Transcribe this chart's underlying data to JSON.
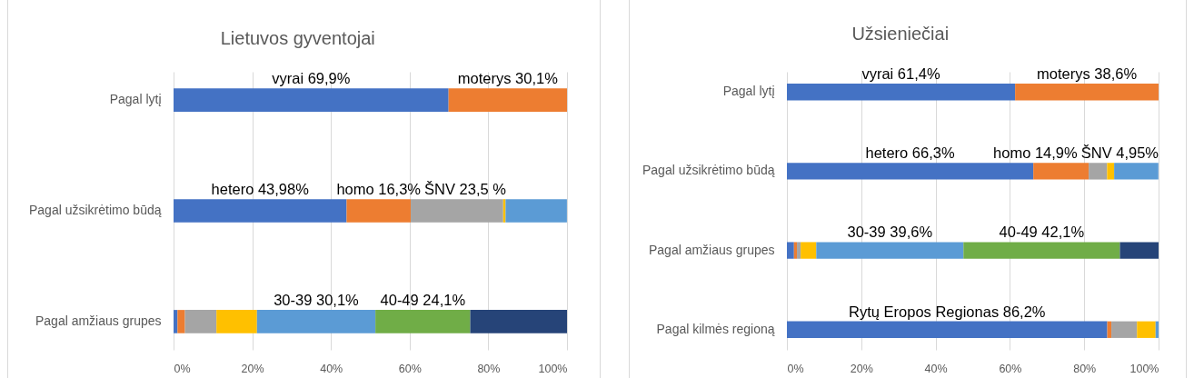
{
  "chart_data": [
    {
      "type": "bar",
      "title": "Lietuvos gyventojai",
      "orientation": "horizontal",
      "stacked": true,
      "categories": [
        "Pagal lytį",
        "Pagal užsikrėtimo būdą",
        "Pagal amžiaus grupes"
      ],
      "series": [
        {
          "color": "#4472c4",
          "values": [
            69.9,
            43.98,
            1.0
          ],
          "value_labels": [
            "vyrai 69,9%",
            "hetero 43,98%",
            null
          ]
        },
        {
          "color": "#ed7d31",
          "values": [
            30.1,
            16.3,
            1.9
          ],
          "value_labels": [
            "moterys 30,1%",
            "homo 16,3%",
            null
          ]
        },
        {
          "color": "#a5a5a5",
          "values": [
            null,
            23.5,
            8.0
          ],
          "value_labels": [
            null,
            "ŠNV 23,5 %",
            null
          ]
        },
        {
          "color": "#ffc000",
          "values": [
            null,
            0.6,
            10.3
          ]
        },
        {
          "color": "#5b9bd5",
          "values": [
            null,
            15.6,
            30.1
          ],
          "value_labels": [
            null,
            null,
            "30-39 30,1%"
          ]
        },
        {
          "color": "#70ad47",
          "values": [
            null,
            null,
            24.1
          ],
          "value_labels": [
            null,
            null,
            "40-49 24,1%"
          ]
        },
        {
          "color": "#264478",
          "values": [
            null,
            null,
            24.6
          ]
        }
      ],
      "xlim": [
        0,
        100
      ],
      "xticks": [
        {
          "value": 0,
          "label": "0%"
        },
        {
          "value": 20,
          "label": "20%"
        },
        {
          "value": 40,
          "label": "40%"
        },
        {
          "value": 60,
          "label": "60%"
        },
        {
          "value": 80,
          "label": "80%"
        },
        {
          "value": 100,
          "label": "100%"
        }
      ],
      "grid": "x"
    },
    {
      "type": "bar",
      "title": "Užsieniečiai",
      "orientation": "horizontal",
      "stacked": true,
      "categories": [
        "Pagal lytį",
        "Pagal užsikrėtimo būdą",
        "Pagal amžiaus grupes",
        "Pagal kilmės regioną"
      ],
      "series": [
        {
          "color": "#4472c4",
          "values": [
            61.4,
            66.3,
            1.9,
            86.2
          ],
          "value_labels": [
            "vyrai 61,4%",
            "hetero 66,3%",
            null,
            "Rytų Eropos Regionas 86,2%"
          ]
        },
        {
          "color": "#ed7d31",
          "values": [
            38.6,
            14.9,
            0.8,
            1.1
          ],
          "value_labels": [
            "moterys 38,6%",
            "homo 14,9%",
            null,
            null
          ]
        },
        {
          "color": "#a5a5a5",
          "values": [
            null,
            4.95,
            1.0,
            6.9
          ],
          "value_labels": [
            null,
            "ŠNV 4,95%",
            null,
            null
          ]
        },
        {
          "color": "#ffc000",
          "values": [
            null,
            1.9,
            4.2,
            5.0
          ]
        },
        {
          "color": "#5b9bd5",
          "values": [
            null,
            11.9,
            39.6,
            0.8
          ],
          "value_labels": [
            null,
            null,
            "30-39 39,6%",
            null
          ]
        },
        {
          "color": "#70ad47",
          "values": [
            null,
            null,
            42.1,
            null
          ],
          "value_labels": [
            null,
            null,
            "40-49 42,1%",
            null
          ]
        },
        {
          "color": "#264478",
          "values": [
            null,
            null,
            10.4,
            null
          ]
        }
      ],
      "xlim": [
        0,
        100
      ],
      "xticks": [
        {
          "value": 0,
          "label": "0%"
        },
        {
          "value": 20,
          "label": "20%"
        },
        {
          "value": 40,
          "label": "40%"
        },
        {
          "value": 60,
          "label": "60%"
        },
        {
          "value": 80,
          "label": "80%"
        },
        {
          "value": 100,
          "label": "100%"
        }
      ],
      "grid": "x"
    }
  ]
}
